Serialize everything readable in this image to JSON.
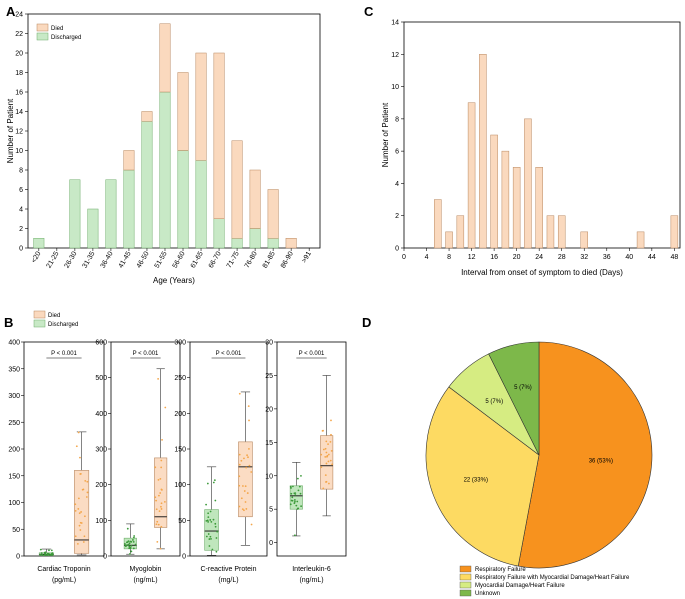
{
  "colors": {
    "died": "#FAD9BE",
    "died_edge": "#B8875F",
    "discharged": "#C8E9C6",
    "discharged_edge": "#6FAE6B",
    "box_died": "#FBDCC3",
    "box_discharged": "#BFE6BC",
    "pt_died": "#F4A64A",
    "pt_discharged": "#3C9A3A",
    "pie_rf": "#F7921E",
    "pie_rfmd": "#FDDA62",
    "pie_md": "#D6EC82",
    "pie_unk": "#7DB84A"
  },
  "chart_data": [
    {
      "panel": "A",
      "type": "bar",
      "stacked": true,
      "categories": [
        "<20",
        "21-25",
        "26-30",
        "31-35",
        "36-40",
        "41-45",
        "46-50",
        "51-55",
        "56-60",
        "61-65",
        "66-70",
        "71-75",
        "76-80",
        "81-85",
        "86-90",
        ">91"
      ],
      "series": [
        {
          "name": "Discharged",
          "values": [
            1,
            0,
            7,
            4,
            7,
            8,
            13,
            16,
            10,
            9,
            3,
            1,
            2,
            1,
            0,
            0
          ]
        },
        {
          "name": "Died",
          "values": [
            0,
            0,
            0,
            0,
            0,
            2,
            1,
            7,
            8,
            11,
            17,
            10,
            6,
            5,
            1,
            0
          ]
        }
      ],
      "xlabel": "Age (Years)",
      "ylabel": "Number of Patient",
      "ylim": [
        0,
        24
      ],
      "yticks": [
        0,
        2,
        4,
        6,
        8,
        10,
        12,
        14,
        16,
        18,
        20,
        22,
        24
      ],
      "legend": "top-left",
      "legend_entries": [
        "Died",
        "Discharged"
      ]
    },
    {
      "panel": "C",
      "type": "bar",
      "x": [
        6,
        8,
        10,
        12,
        14,
        16,
        18,
        20,
        22,
        24,
        26,
        28,
        32,
        42,
        48
      ],
      "values": [
        3,
        1,
        2,
        9,
        12,
        7,
        6,
        5,
        8,
        5,
        2,
        2,
        1,
        1,
        2
      ],
      "xlabel": "Interval from onset of symptom to died (Days)",
      "ylabel": "Number of Patient",
      "xlim": [
        0,
        49
      ],
      "ylim": [
        0,
        14
      ],
      "xticks": [
        0,
        4,
        8,
        12,
        16,
        20,
        24,
        28,
        32,
        36,
        40,
        44,
        48
      ],
      "xtick_labels": [
        "0",
        "4",
        "8",
        "12",
        "16",
        "20",
        "24",
        "28",
        "32",
        "36",
        "40",
        "44",
        "48"
      ],
      "yticks": [
        0,
        2,
        4,
        6,
        8,
        10,
        12,
        14
      ]
    },
    {
      "panel": "B",
      "type": "box",
      "legend": "top-left",
      "legend_entries": [
        "Died",
        "Discharged"
      ],
      "groups": [
        "Discharged",
        "Died"
      ],
      "panels": [
        {
          "xlabel": "Cardiac Troponin",
          "unit": "(pg/mL)",
          "ylim": [
            0,
            400
          ],
          "yticks": [
            0,
            50,
            100,
            150,
            200,
            250,
            300,
            350,
            400
          ],
          "annotation": "P < 0.001",
          "discharged": {
            "whislo": 0,
            "q1": 1,
            "med": 3,
            "q3": 6,
            "whishi": 13
          },
          "died": {
            "whislo": 2,
            "q1": 5,
            "med": 30,
            "q3": 160,
            "whishi": 232
          }
        },
        {
          "xlabel": "Myoglobin",
          "unit": "(ng/mL)",
          "ylim": [
            0,
            600
          ],
          "yticks": [
            0,
            100,
            200,
            300,
            400,
            500,
            600
          ],
          "annotation": "P < 0.001",
          "discharged": {
            "whislo": 5,
            "q1": 20,
            "med": 30,
            "q3": 50,
            "whishi": 90
          },
          "died": {
            "whislo": 20,
            "q1": 80,
            "med": 110,
            "q3": 275,
            "whishi": 525
          }
        },
        {
          "xlabel": "C-reactive Protein",
          "unit": "(mg/L)",
          "ylim": [
            0,
            300
          ],
          "yticks": [
            0,
            50,
            100,
            150,
            200,
            250,
            300
          ],
          "annotation": "P < 0.001",
          "discharged": {
            "whislo": 1,
            "q1": 8,
            "med": 35,
            "q3": 65,
            "whishi": 125
          },
          "died": {
            "whislo": 15,
            "q1": 55,
            "med": 125,
            "q3": 160,
            "whishi": 230
          }
        },
        {
          "xlabel": "Interleukin-6",
          "unit": "(ng/mL)",
          "ylim": [
            -2,
            30
          ],
          "yticks": [
            0,
            5,
            10,
            15,
            20,
            25,
            30
          ],
          "annotation": "P < 0.001",
          "discharged": {
            "whislo": 1,
            "q1": 5,
            "med": 7,
            "q3": 8.5,
            "whishi": 12
          },
          "died": {
            "whislo": 4,
            "q1": 8,
            "med": 11.5,
            "q3": 16,
            "whishi": 25
          }
        }
      ]
    },
    {
      "panel": "D",
      "type": "pie",
      "slices": [
        {
          "name": "Respiratory Failure",
          "value": 36,
          "label": "36 (53%)"
        },
        {
          "name": "Respiratory Failure with Myocardial Damage/Heart Failure",
          "value": 22,
          "label": "22 (33%)"
        },
        {
          "name": "Myocardial Damage/Heart Failure",
          "value": 5,
          "label": "5 (7%)"
        },
        {
          "name": "Unknown",
          "value": 5,
          "label": "5 (7%)"
        }
      ],
      "legend": "bottom-left"
    }
  ]
}
